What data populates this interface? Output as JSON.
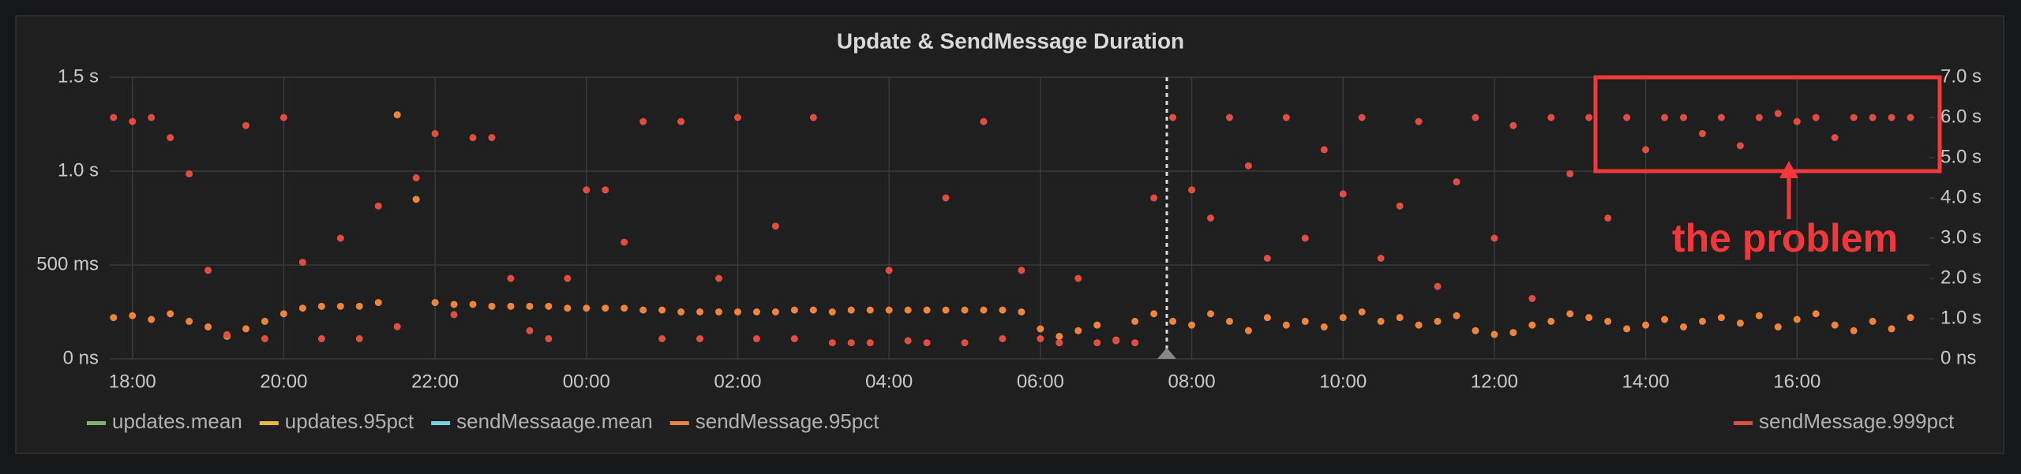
{
  "chart_data": {
    "type": "scatter",
    "title": "Update & SendMessage Duration",
    "annotation": "the problem",
    "x": [
      17.75,
      18.0,
      18.25,
      18.5,
      18.75,
      19.0,
      19.25,
      19.5,
      19.75,
      20.0,
      20.25,
      20.5,
      20.75,
      21.0,
      21.25,
      21.5,
      21.75,
      22.0,
      22.25,
      22.5,
      22.75,
      23.0,
      23.25,
      23.5,
      23.75,
      24.0,
      24.25,
      24.5,
      24.75,
      25.0,
      25.25,
      25.5,
      25.75,
      26.0,
      26.25,
      26.5,
      26.75,
      27.0,
      27.25,
      27.5,
      27.75,
      28.0,
      28.25,
      28.5,
      28.75,
      29.0,
      29.25,
      29.5,
      29.75,
      30.0,
      30.25,
      30.5,
      30.75,
      31.0,
      31.25,
      31.5,
      31.75,
      32.0,
      32.25,
      32.5,
      32.75,
      33.0,
      33.25,
      33.5,
      33.75,
      34.0,
      34.25,
      34.5,
      34.75,
      35.0,
      35.25,
      35.5,
      35.75,
      36.0,
      36.25,
      36.5,
      36.75,
      37.0,
      37.25,
      37.5,
      37.75,
      38.0,
      38.25,
      38.5,
      38.75,
      39.0,
      39.25,
      39.5,
      39.75,
      40.0,
      40.25,
      40.5,
      40.75,
      41.0,
      41.25,
      41.5
    ],
    "series": [
      {
        "name": "updates.mean",
        "color": "#7eb26d"
      },
      {
        "name": "updates.95pct",
        "color": "#eab839"
      },
      {
        "name": "sendMessaage.mean",
        "color": "#6ed0e0"
      },
      {
        "name": "sendMessage.95pct",
        "color": "#ef843c",
        "values": [
          0.22,
          0.23,
          0.21,
          0.24,
          0.2,
          0.17,
          0.12,
          0.16,
          0.2,
          0.24,
          0.27,
          0.28,
          0.28,
          0.28,
          0.3,
          1.3,
          0.85,
          0.3,
          0.29,
          0.29,
          0.28,
          0.28,
          0.28,
          0.28,
          0.27,
          0.27,
          0.27,
          0.27,
          0.26,
          0.26,
          0.25,
          0.25,
          0.25,
          0.25,
          0.25,
          0.25,
          0.26,
          0.26,
          0.25,
          0.26,
          0.26,
          0.26,
          0.26,
          0.26,
          0.26,
          0.26,
          0.26,
          0.26,
          0.25,
          0.16,
          0.12,
          0.15,
          0.18,
          0.1,
          0.2,
          0.24,
          0.2,
          0.18,
          0.24,
          0.2,
          0.15,
          0.22,
          0.18,
          0.2,
          0.17,
          0.22,
          0.25,
          0.2,
          0.22,
          0.18,
          0.2,
          0.23,
          0.15,
          0.13,
          0.14,
          0.18,
          0.2,
          0.24,
          0.22,
          0.2,
          0.16,
          0.18,
          0.21,
          0.17,
          0.2,
          0.22,
          0.19,
          0.23,
          0.17,
          0.21,
          0.24,
          0.18,
          0.15,
          0.2,
          0.16,
          0.22
        ]
      },
      {
        "name": "sendMessage.999pct",
        "color": "#e24d42",
        "axis": "y2",
        "values": [
          6.0,
          5.9,
          6.0,
          5.5,
          4.6,
          2.2,
          0.6,
          5.8,
          0.5,
          6.0,
          2.4,
          0.5,
          3.0,
          0.5,
          3.8,
          0.8,
          4.5,
          5.6,
          1.1,
          5.5,
          5.5,
          2.0,
          0.7,
          0.5,
          2.0,
          4.2,
          4.2,
          2.9,
          5.9,
          0.5,
          5.9,
          0.5,
          2.0,
          6.0,
          0.5,
          3.3,
          0.5,
          6.0,
          0.4,
          0.4,
          0.4,
          2.2,
          0.45,
          0.4,
          4.0,
          0.4,
          5.9,
          0.5,
          2.2,
          0.5,
          0.4,
          2.0,
          0.4,
          0.45,
          0.4,
          4.0,
          6.0,
          4.2,
          3.5,
          6.0,
          4.8,
          2.5,
          6.0,
          3.0,
          5.2,
          4.1,
          6.0,
          2.5,
          3.8,
          5.9,
          1.8,
          4.4,
          6.0,
          3.0,
          5.8,
          1.5,
          6.0,
          4.6,
          6.0,
          3.5,
          6.0,
          5.2,
          6.0,
          6.0,
          5.6,
          6.0,
          5.3,
          6.0,
          6.1,
          5.9,
          6.0,
          5.5,
          6.0,
          6.0,
          6.0,
          6.0
        ]
      }
    ],
    "xlim": [
      17.7,
      41.75
    ],
    "xticks": [
      {
        "value": 18,
        "label": "18:00"
      },
      {
        "value": 20,
        "label": "20:00"
      },
      {
        "value": 22,
        "label": "22:00"
      },
      {
        "value": 24,
        "label": "00:00"
      },
      {
        "value": 26,
        "label": "02:00"
      },
      {
        "value": 28,
        "label": "04:00"
      },
      {
        "value": 30,
        "label": "06:00"
      },
      {
        "value": 32,
        "label": "08:00"
      },
      {
        "value": 34,
        "label": "10:00"
      },
      {
        "value": 36,
        "label": "12:00"
      },
      {
        "value": 38,
        "label": "14:00"
      },
      {
        "value": 40,
        "label": "16:00"
      }
    ],
    "ylim": [
      0,
      1.5
    ],
    "yticks": [
      {
        "value": 0,
        "label": "0 ns"
      },
      {
        "value": 0.5,
        "label": "500 ms"
      },
      {
        "value": 1.0,
        "label": "1.0 s"
      },
      {
        "value": 1.5,
        "label": "1.5 s"
      }
    ],
    "y2lim": [
      0,
      7
    ],
    "y2ticks": [
      {
        "value": 0,
        "label": "0 ns"
      },
      {
        "value": 1,
        "label": "1.0 s"
      },
      {
        "value": 2,
        "label": "2.0 s"
      },
      {
        "value": 3,
        "label": "3.0 s"
      },
      {
        "value": 4,
        "label": "4.0 s"
      },
      {
        "value": 5,
        "label": "5.0 s"
      },
      {
        "value": 6,
        "label": "6.0 s"
      },
      {
        "value": 7,
        "label": "7.0 s"
      }
    ],
    "grid": true
  }
}
